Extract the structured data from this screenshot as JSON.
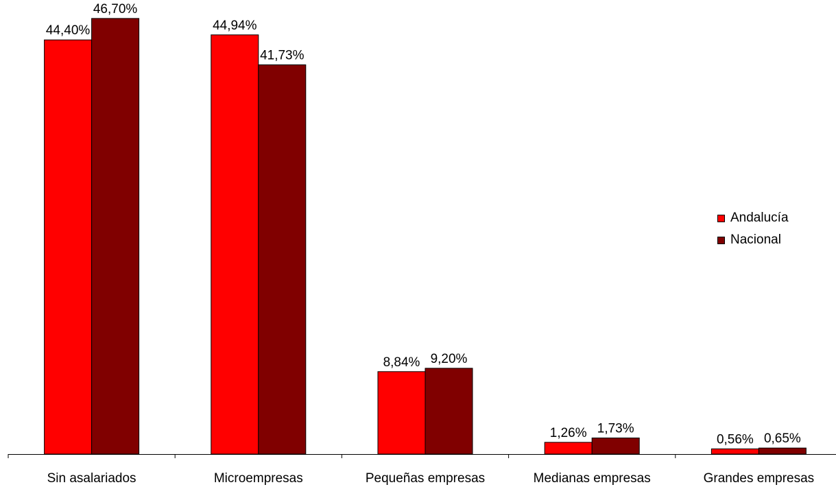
{
  "chart_data": {
    "type": "bar",
    "categories": [
      "Sin asalariados",
      "Microempresas",
      "Pequeñas empresas",
      "Medianas empresas",
      "Grandes empresas"
    ],
    "series": [
      {
        "name": "Andalucía",
        "color": "#FF0000",
        "values": [
          44.4,
          44.94,
          8.84,
          1.26,
          0.56
        ],
        "labels": [
          "44,40%",
          "44,94%",
          "8,84%",
          "1,26%",
          "0,56%"
        ]
      },
      {
        "name": "Nacional",
        "color": "#800000",
        "values": [
          46.7,
          41.73,
          9.2,
          1.73,
          0.65
        ],
        "labels": [
          "46,70%",
          "41,73%",
          "9,20%",
          "1,73%",
          "0,65%"
        ]
      }
    ],
    "ylim": [
      0,
      50
    ],
    "legend_position": "right",
    "grid": false
  }
}
